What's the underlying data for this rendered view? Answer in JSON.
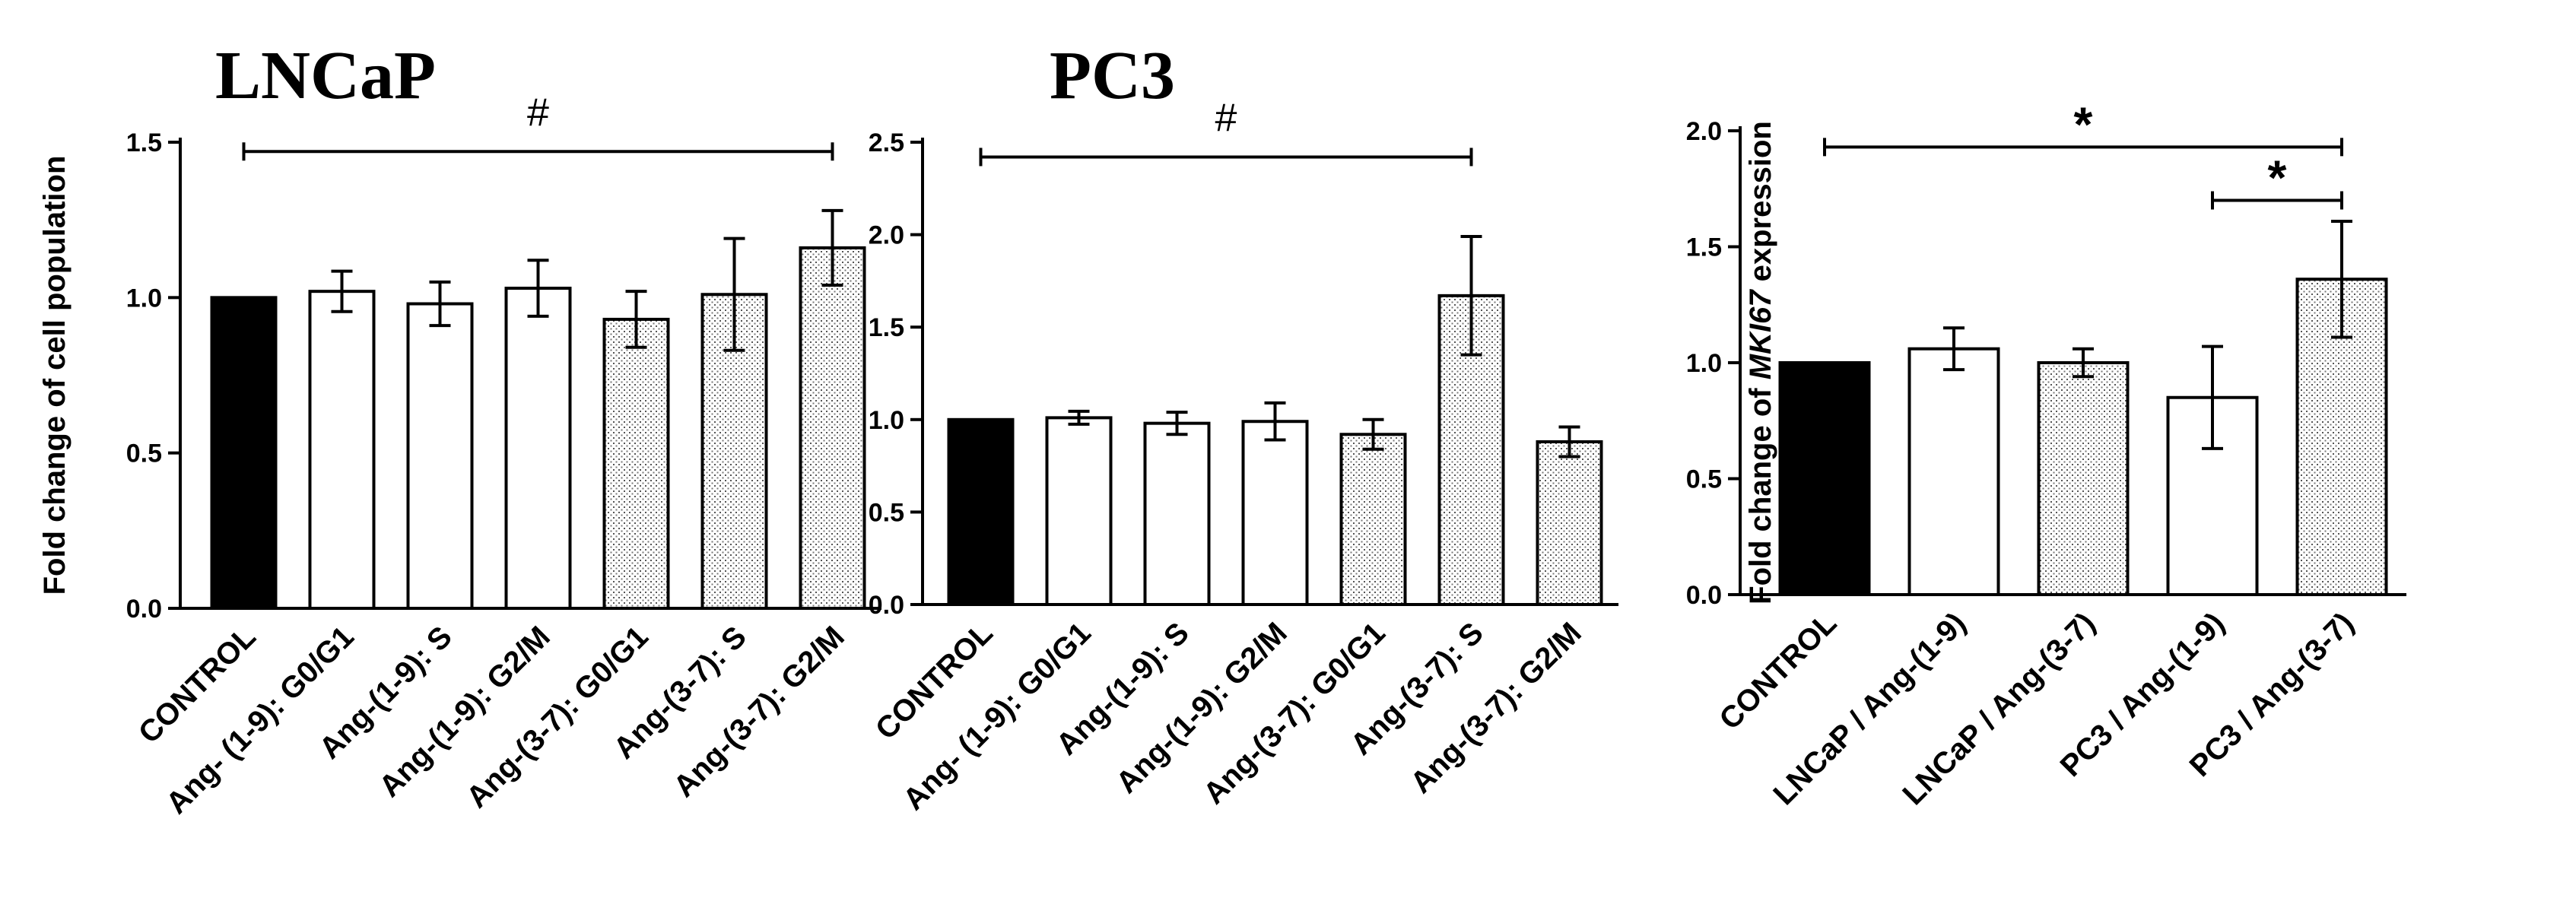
{
  "chart_data": [
    {
      "type": "bar",
      "title": "LNCaP",
      "ylabel": "Fold change of cell population",
      "xlabel": "",
      "ylim": [
        0,
        1.5
      ],
      "yticks": [
        "0.0",
        "0.5",
        "1.0",
        "1.5"
      ],
      "categories": [
        "CONTROL",
        "Ang- (1-9): G0/G1",
        "Ang-(1-9): S",
        "Ang-(1-9): G2/M",
        "Ang-(3-7): G0/G1",
        "Ang-(3-7): S",
        "Ang-(3-7): G2/M"
      ],
      "values": [
        1.0,
        1.02,
        0.98,
        1.03,
        0.93,
        1.01,
        1.16
      ],
      "errors": [
        0.0,
        0.065,
        0.07,
        0.09,
        0.09,
        0.18,
        0.12
      ],
      "fills": [
        "solid",
        "white",
        "white",
        "white",
        "dotted",
        "dotted",
        "dotted"
      ],
      "significance": [
        {
          "from": 0,
          "to": 6,
          "label": "#",
          "level": 1.47
        }
      ]
    },
    {
      "type": "bar",
      "title": "PC3",
      "ylabel": "",
      "xlabel": "",
      "ylim": [
        0,
        2.5
      ],
      "yticks": [
        "0.0",
        "0.5",
        "1.0",
        "1.5",
        "2.0",
        "2.5"
      ],
      "categories": [
        "CONTROL",
        "Ang- (1-9): G0/G1",
        "Ang-(1-9): S",
        "Ang-(1-9): G2/M",
        "Ang-(3-7): G0/G1",
        "Ang-(3-7): S",
        "Ang-(3-7): G2/M"
      ],
      "values": [
        1.0,
        1.01,
        0.98,
        0.99,
        0.92,
        1.67,
        0.88
      ],
      "errors": [
        0.0,
        0.035,
        0.06,
        0.1,
        0.08,
        0.32,
        0.08
      ],
      "fills": [
        "solid",
        "white",
        "white",
        "white",
        "dotted",
        "dotted",
        "dotted"
      ],
      "significance": [
        {
          "from": 0,
          "to": 5,
          "label": "#",
          "level": 2.42
        }
      ]
    },
    {
      "type": "bar",
      "title": "",
      "ylabel": "Fold change of MKI67 expression",
      "ylabel_parts": [
        "Fold change of ",
        "MKI67",
        " expression"
      ],
      "xlabel": "",
      "ylim": [
        0,
        2.0
      ],
      "yticks": [
        "0.0",
        "0.5",
        "1.0",
        "1.5",
        "2.0"
      ],
      "categories": [
        "CONTROL",
        "LNCaP / Ang-(1-9)",
        "LNCaP / Ang-(3-7)",
        "PC3 / Ang-(1-9)",
        "PC3 / Ang-(3-7)"
      ],
      "values": [
        1.0,
        1.06,
        1.0,
        0.85,
        1.36
      ],
      "errors": [
        0.0,
        0.09,
        0.06,
        0.22,
        0.25
      ],
      "fills": [
        "solid",
        "white",
        "dotted",
        "white",
        "dotted"
      ],
      "significance": [
        {
          "from": 0,
          "to": 4,
          "label": "*",
          "level": 1.93
        },
        {
          "from": 3,
          "to": 4,
          "label": "*",
          "level": 1.7
        }
      ]
    }
  ]
}
